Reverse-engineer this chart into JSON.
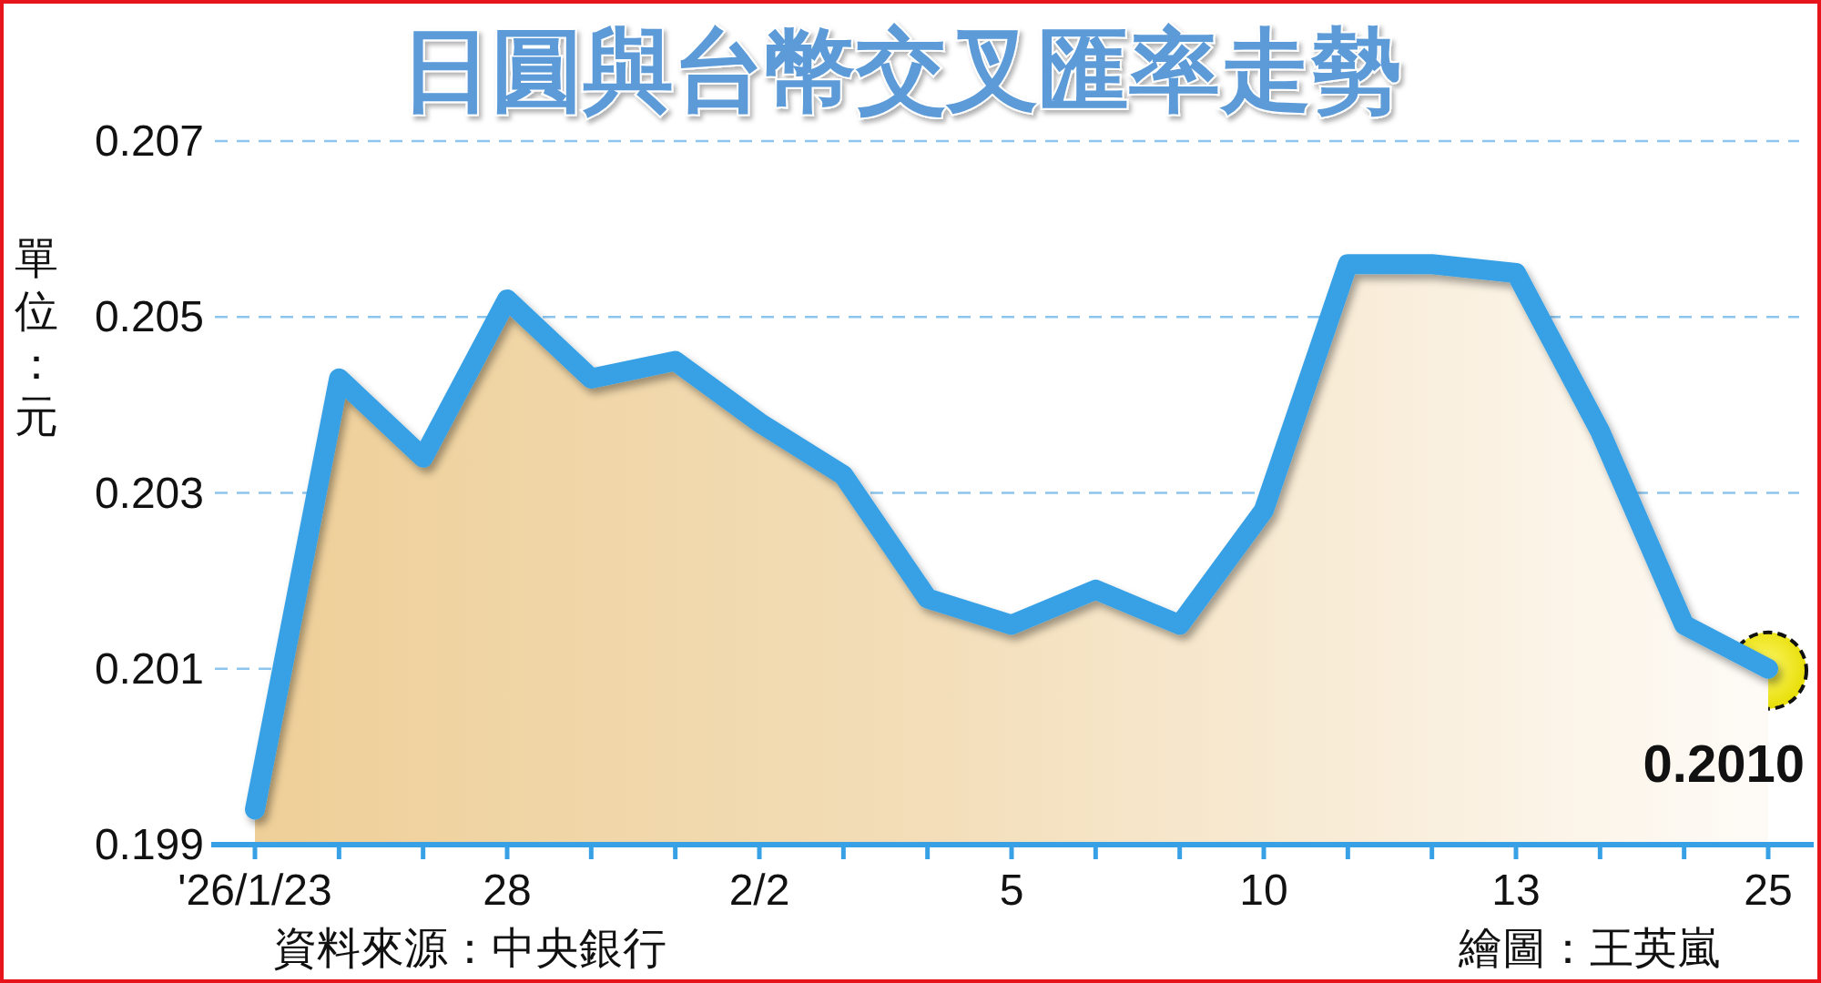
{
  "chart_data": {
    "type": "area",
    "title": "日圓與台幣交叉匯率走勢",
    "ylabel": "單位：元",
    "categories": [
      "'26/1/23",
      null,
      null,
      "28",
      null,
      null,
      "2/2",
      null,
      null,
      "5",
      null,
      null,
      "10",
      null,
      null,
      "13",
      null,
      null,
      "25"
    ],
    "series": [
      {
        "color": "#38a1e6",
        "values": [
          0.1994,
          0.2043,
          0.2034,
          0.2052,
          0.2043,
          0.2045,
          0.2038,
          0.2032,
          0.2018,
          0.2015,
          0.2019,
          0.2015,
          0.2028,
          0.2056,
          0.2056,
          0.2055,
          0.2037,
          0.2015,
          0.201
        ]
      }
    ],
    "ylim": [
      0.199,
      0.207
    ],
    "yticks": [
      0.199,
      0.201,
      0.203,
      0.205,
      0.207
    ],
    "grid": "y",
    "annotations": [
      {
        "text": "0.2010",
        "x": "25",
        "y": 0.201
      },
      "資料來源：中央銀行",
      "繪圖：王英嵐"
    ]
  }
}
